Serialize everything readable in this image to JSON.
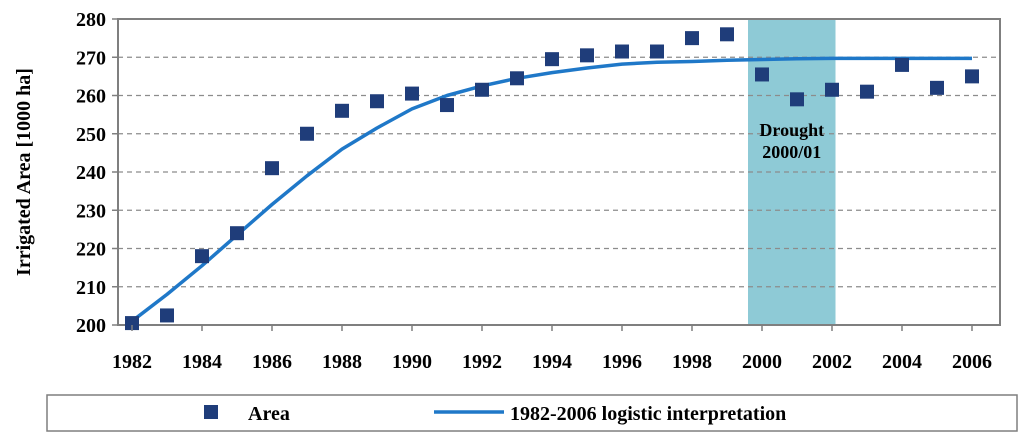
{
  "chart_data": {
    "type": "scatter",
    "title": "",
    "xlabel": "",
    "ylabel": "Irrigated Area [1000 ha]",
    "xlim": [
      1981.6,
      2006.8
    ],
    "ylim": [
      200,
      280
    ],
    "grid": true,
    "x_ticks": [
      1982,
      1984,
      1986,
      1988,
      1990,
      1992,
      1994,
      1996,
      1998,
      2000,
      2002,
      2004,
      2006
    ],
    "y_ticks": [
      200,
      210,
      220,
      230,
      240,
      250,
      260,
      270,
      280
    ],
    "series": [
      {
        "name": "Area",
        "kind": "scatter",
        "color": "#1f3d7a",
        "x": [
          1982,
          1983,
          1984,
          1985,
          1986,
          1987,
          1988,
          1989,
          1990,
          1991,
          1992,
          1993,
          1994,
          1995,
          1996,
          1997,
          1998,
          1999,
          2000,
          2001,
          2002,
          2003,
          2004,
          2005,
          2006
        ],
        "values": [
          200.5,
          202.5,
          218,
          224,
          241,
          250,
          256,
          258.5,
          260.5,
          257.5,
          261.5,
          264.5,
          269.5,
          270.5,
          271.5,
          271.5,
          275,
          276,
          265.5,
          259,
          261.5,
          261,
          268,
          262,
          265
        ]
      },
      {
        "name": "1982-2006 logistic interpretation",
        "kind": "line",
        "color": "#1f78c8",
        "x": [
          1982,
          1983,
          1984,
          1985,
          1986,
          1987,
          1988,
          1989,
          1990,
          1991,
          1992,
          1993,
          1994,
          1995,
          1996,
          1997,
          1998,
          1999,
          2000,
          2001,
          2002,
          2003,
          2004,
          2005,
          2006
        ],
        "values": [
          201,
          208,
          215.5,
          223.5,
          231.5,
          239,
          246,
          251.5,
          256.5,
          260,
          262.5,
          264.5,
          266,
          267.2,
          268.2,
          268.7,
          268.9,
          269.2,
          269.4,
          269.6,
          269.7,
          269.7,
          269.7,
          269.7,
          269.7
        ]
      }
    ],
    "annotations": [
      {
        "text_lines": [
          "Drought",
          "2000/01"
        ],
        "span_x": [
          1999.6,
          2002.1
        ],
        "color": "#8ecad6"
      }
    ],
    "legend": {
      "position": "bottom",
      "items": [
        "Area",
        "1982-2006 logistic interpretation"
      ]
    }
  }
}
